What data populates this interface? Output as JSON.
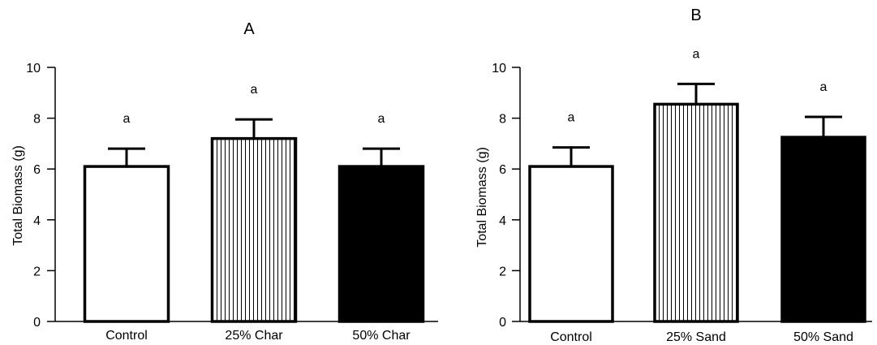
{
  "chart_data": [
    {
      "type": "bar",
      "title": "A",
      "xlabel": "",
      "ylabel": "Total  Biomass (g)",
      "ylim": [
        0,
        10
      ],
      "yticks": [
        0,
        2,
        4,
        6,
        8,
        10
      ],
      "categories": [
        "Control",
        "25% Char",
        "50% Char"
      ],
      "values": [
        6.1,
        7.2,
        6.1
      ],
      "errors": [
        0.7,
        0.75,
        0.7
      ],
      "annotations": [
        "a",
        "a",
        "a"
      ],
      "fills": [
        "white",
        "vertical-stripes",
        "black"
      ]
    },
    {
      "type": "bar",
      "title": "B",
      "xlabel": "",
      "ylabel": "Total  Biomass (g)",
      "ylim": [
        0,
        10
      ],
      "yticks": [
        0,
        2,
        4,
        6,
        8,
        10
      ],
      "categories": [
        "Control",
        "25% Sand",
        "50% Sand"
      ],
      "values": [
        6.1,
        8.55,
        7.25
      ],
      "errors": [
        0.75,
        0.8,
        0.8
      ],
      "annotations": [
        "a",
        "a",
        "a"
      ],
      "fills": [
        "white",
        "vertical-stripes",
        "black"
      ]
    }
  ]
}
